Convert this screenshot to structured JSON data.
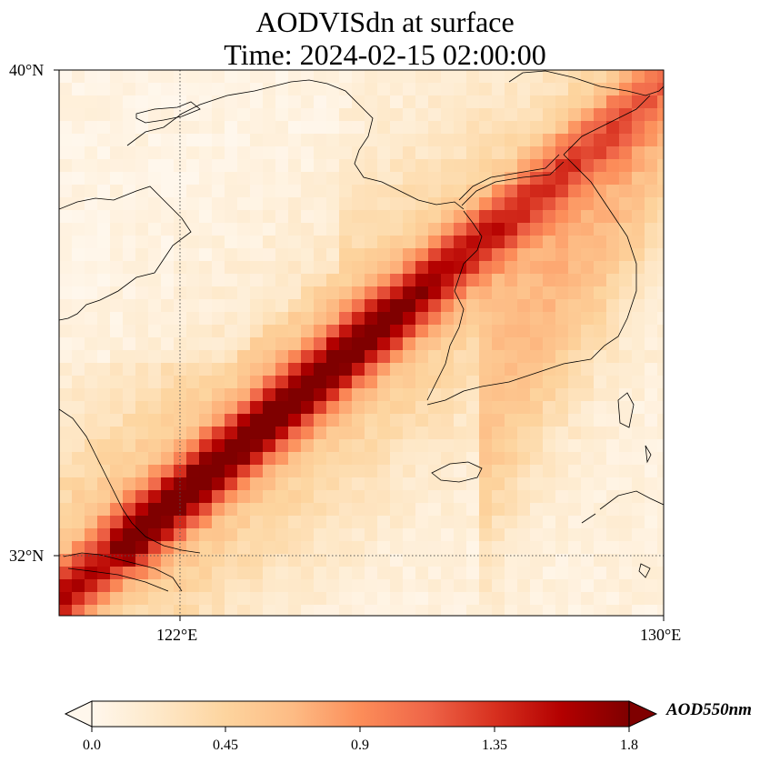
{
  "map": {
    "title_line1": "AODVISdn at surface",
    "title_line2": "Time: 2024-02-15 02:00:00",
    "lat_labels": [
      "40°N",
      "32°N"
    ],
    "lon_labels": [
      "122°E",
      "130°E"
    ],
    "extent": {
      "lon_min": 120,
      "lon_max": 130,
      "lat_min": 31,
      "lat_max": 40
    },
    "gridlines": {
      "lon": [
        122
      ],
      "lat": [
        32
      ],
      "style": "dotted"
    },
    "colormap": "OrRd"
  },
  "colorbar": {
    "label": "AOD550nm",
    "ticks": [
      "0.0",
      "0.45",
      "0.9",
      "1.35",
      "1.8"
    ],
    "range": [
      0.0,
      1.8
    ],
    "extend": "both",
    "colors": [
      "#fff7ec",
      "#fee8c8",
      "#fdd49e",
      "#fdbb84",
      "#fc8d59",
      "#ef6548",
      "#d7301f",
      "#b30000",
      "#7f0000"
    ]
  }
}
